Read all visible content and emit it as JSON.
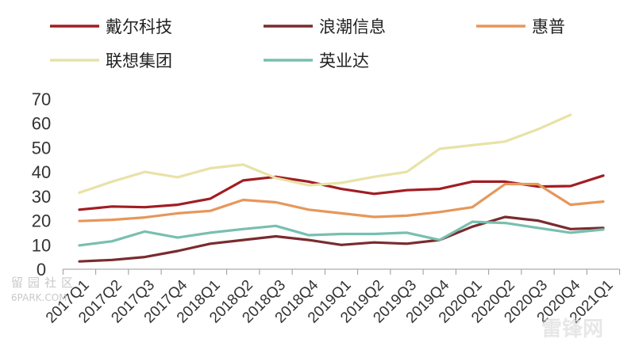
{
  "chart_data": {
    "type": "line",
    "title": "",
    "xlabel": "",
    "ylabel": "",
    "ylim": [
      0,
      70
    ],
    "yticks": [
      0,
      10,
      20,
      30,
      40,
      50,
      60,
      70
    ],
    "grid": false,
    "legend_position": "top",
    "categories": [
      "2017Q1",
      "2017Q2",
      "2017Q3",
      "2017Q4",
      "2018Q1",
      "2018Q2",
      "2018Q3",
      "2018Q4",
      "2019Q1",
      "2019Q2",
      "2019Q3",
      "2019Q4",
      "2020Q1",
      "2020Q2",
      "2020Q3",
      "2020Q4",
      "2021Q1"
    ],
    "series": [
      {
        "name": "戴尔科技",
        "color": "#a11d22",
        "values": [
          24.5,
          25.8,
          25.5,
          26.5,
          29,
          36.5,
          38,
          36,
          33,
          31,
          32.5,
          33,
          36,
          36,
          34,
          34.2,
          38.5
        ]
      },
      {
        "name": "浪潮信息",
        "color": "#7a2b2e",
        "values": [
          3.2,
          3.8,
          5,
          7.5,
          10.5,
          12,
          13.5,
          12,
          10,
          11,
          10.5,
          12,
          17.5,
          21.5,
          20,
          16.5,
          17
        ]
      },
      {
        "name": "惠普",
        "color": "#e6975a",
        "values": [
          19.8,
          20.3,
          21.3,
          23,
          24,
          28.5,
          27.5,
          24.5,
          23,
          21.5,
          22,
          23.5,
          25.5,
          35,
          35,
          26.5,
          27.8
        ]
      },
      {
        "name": "联想集团",
        "color": "#e8e2a6",
        "values": [
          31.5,
          36,
          40,
          37.8,
          41.5,
          43,
          37.5,
          34.5,
          35.5,
          38,
          40,
          49.5,
          51,
          52.5,
          57.5,
          63.5,
          null
        ]
      },
      {
        "name": "英业达",
        "color": "#78bfb0",
        "values": [
          9.8,
          11.5,
          15.5,
          13,
          15,
          16.5,
          17.8,
          14,
          14.5,
          14.5,
          15,
          12,
          19.5,
          19,
          17,
          15,
          16.3
        ]
      }
    ]
  },
  "watermarks": {
    "left_cn": "留园社区",
    "left_en": "6PARK.COM",
    "right": "雷锋网"
  }
}
